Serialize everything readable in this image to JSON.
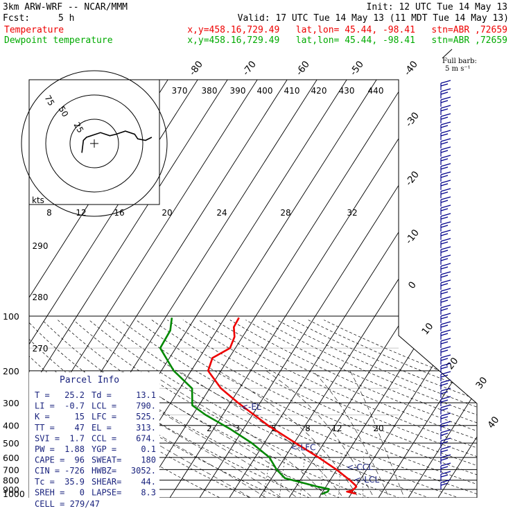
{
  "header": {
    "model": "3km ARW-WRF -- NCAR/MMM",
    "init": "Init: 12 UTC Tue 14 May 13",
    "fcst_label": "Fcst:",
    "fcst_value": "5 h",
    "valid": "Valid: 17 UTC Tue 14 May 13 (11 MDT Tue 14 May 13)",
    "temp_name": "Temperature",
    "temp_loc": "x,y=458.16,729.49   lat,lon= 45.44, -98.41   stn=ABR ,72659",
    "dew_name": "Dewpoint temperature",
    "dew_loc": "x,y=458.16,729.49   lat,lon= 45.44, -98.41   stn=ABR ,72659",
    "barb_title": "Full barb:",
    "barb_unit": "5 m s⁻¹"
  },
  "colors": {
    "temperature": "#ee0000",
    "dewpoint": "#008800",
    "barbs": "#00008b",
    "parcel": "#1a237e"
  },
  "chart_data": {
    "type": "line",
    "chart_kind": "skew-T log-P diagram",
    "yscale": "log",
    "ylim": [
      1000,
      100
    ],
    "pressure_labels": [
      "100",
      "200",
      "300",
      "400",
      "500",
      "600",
      "700",
      "800",
      "900",
      "1000"
    ],
    "isotherm_labels": [
      "-80",
      "-70",
      "-60",
      "-50",
      "-40",
      "-30",
      "-20",
      "-10",
      "0",
      "10",
      "20",
      "30",
      "40"
    ],
    "theta_labels": [
      "370",
      "380",
      "390",
      "400",
      "410",
      "420",
      "430",
      "440"
    ],
    "theta_left_labels": [
      "290",
      "280",
      "270"
    ],
    "mixing_ratio_labels": [
      "2",
      "3",
      "5",
      "8",
      "12",
      "20"
    ],
    "hodograph_speed_labels": [
      "8",
      "12",
      "16",
      "20",
      "24",
      "28",
      "32"
    ],
    "hodograph_ring_labels": [
      "75",
      "50",
      "25"
    ],
    "hodograph_unit": "kts",
    "series": [
      {
        "name": "Temperature",
        "color": "#ee0000",
        "points": [
          {
            "p": 950,
            "t": 21.6
          },
          {
            "p": 925,
            "t": 18.1
          },
          {
            "p": 915,
            "t": 19.6
          },
          {
            "p": 870,
            "t": 20.2
          },
          {
            "p": 850,
            "t": 19.4
          },
          {
            "p": 800,
            "t": 16.6
          },
          {
            "p": 700,
            "t": 9.9
          },
          {
            "p": 600,
            "t": 1.3
          },
          {
            "p": 500,
            "t": -9.5
          },
          {
            "p": 400,
            "t": -22.5
          },
          {
            "p": 300,
            "t": -37.4
          },
          {
            "p": 250,
            "t": -46.2
          },
          {
            "p": 200,
            "t": -54.3
          },
          {
            "p": 170,
            "t": -55.6
          },
          {
            "p": 150,
            "t": -51.8
          },
          {
            "p": 130,
            "t": -52.7
          },
          {
            "p": 115,
            "t": -55.0
          },
          {
            "p": 102,
            "t": -55.3
          }
        ]
      },
      {
        "name": "Dewpoint temperature",
        "color": "#008800",
        "points": [
          {
            "p": 955,
            "t": 10.2
          },
          {
            "p": 925,
            "t": 11.7
          },
          {
            "p": 895,
            "t": 11.5
          },
          {
            "p": 870,
            "t": 7.4
          },
          {
            "p": 820,
            "t": 0.3
          },
          {
            "p": 780,
            "t": -5.6
          },
          {
            "p": 700,
            "t": -10.2
          },
          {
            "p": 600,
            "t": -15.2
          },
          {
            "p": 500,
            "t": -24.2
          },
          {
            "p": 420,
            "t": -34.2
          },
          {
            "p": 350,
            "t": -45.7
          },
          {
            "p": 310,
            "t": -52.2
          },
          {
            "p": 250,
            "t": -55.9
          },
          {
            "p": 200,
            "t": -65.8
          },
          {
            "p": 150,
            "t": -75.2
          },
          {
            "p": 120,
            "t": -75.6
          },
          {
            "p": 102,
            "t": -77.8
          }
        ]
      }
    ],
    "annotations": [
      {
        "text": "<-EL",
        "p": 313
      },
      {
        "text": "<-LFC",
        "p": 525
      },
      {
        "text": "<-CCL",
        "p": 674
      },
      {
        "text": "<-LCL",
        "p": 790
      }
    ],
    "hodograph": {
      "rings_kts": [
        25,
        50,
        75
      ],
      "trace_u_kts": [
        37,
        33,
        28,
        26,
        20,
        14,
        10,
        4,
        -5,
        -7,
        -8
      ],
      "trace_v_kts": [
        4,
        2,
        3,
        6,
        8,
        6,
        5,
        7,
        4,
        2,
        -6
      ]
    }
  },
  "parcel_info": {
    "title": "Parcel Info",
    "rows": [
      [
        "T  =",
        "25.2",
        "Td =",
        "13.1"
      ],
      [
        "LI =",
        "-0.7",
        "LCL =",
        "790."
      ],
      [
        "K  =",
        "15",
        "LFC =",
        "525."
      ],
      [
        "TT =",
        "47",
        "EL  =",
        "313."
      ],
      [
        "SVI =",
        "1.7",
        "CCL =",
        "674."
      ],
      [
        "PW  =",
        "1.88",
        "YGP =",
        "0.1"
      ],
      [
        "CAPE =",
        "96",
        "SWEAT=",
        "180"
      ],
      [
        "CIN  =",
        "-726",
        "HWBZ=",
        "3052."
      ],
      [
        "Tc  =",
        "35.9",
        "SHEAR=",
        "44."
      ],
      [
        "SREH =",
        "0",
        "LAPSE=",
        "8.3"
      ]
    ],
    "cell": "CELL = 279/47"
  }
}
